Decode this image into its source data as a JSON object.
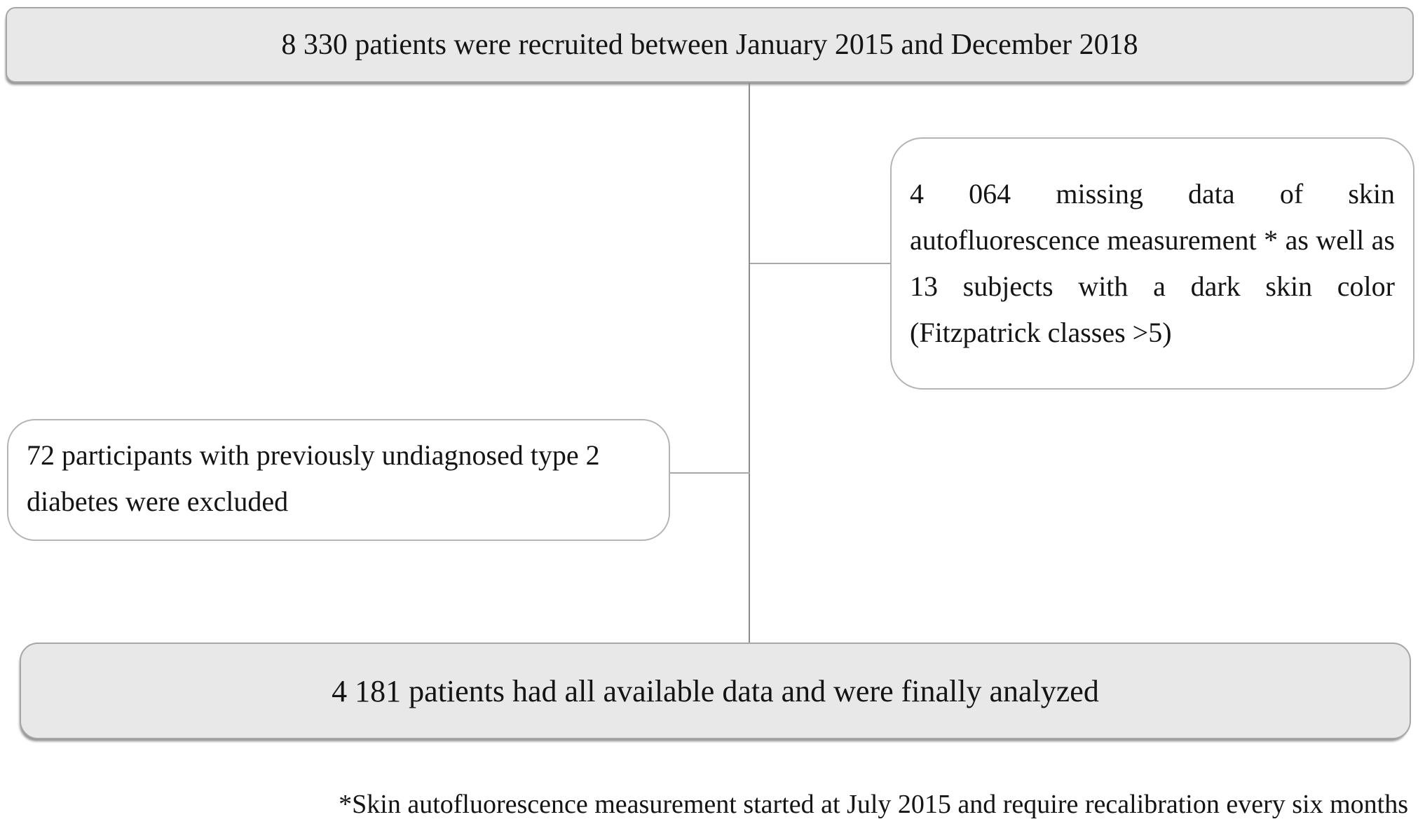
{
  "diagram": {
    "top_box": {
      "text": "8 330 patients were recruited between January 2015 and December 2018"
    },
    "exclusion_right_box": {
      "text": "4 064 missing data of skin autofluorescence measurement * as well as 13 subjects with a dark skin color (Fitzpatrick classes >5)"
    },
    "exclusion_left_box": {
      "text": "72 participants with previously undiagnosed type 2 diabetes were excluded"
    },
    "bottom_box": {
      "text": "4 181 patients had all available data and were finally analyzed"
    },
    "footnote": "*Skin autofluorescence measurement started at July 2015 and require recalibration every six months"
  },
  "colors": {
    "box_fill_gray": "#e8e8e8",
    "box_fill_white": "#ffffff",
    "box_border": "#a6a6a6",
    "connector": "#8c8c8c",
    "text": "#141414",
    "background": "#ffffff"
  }
}
